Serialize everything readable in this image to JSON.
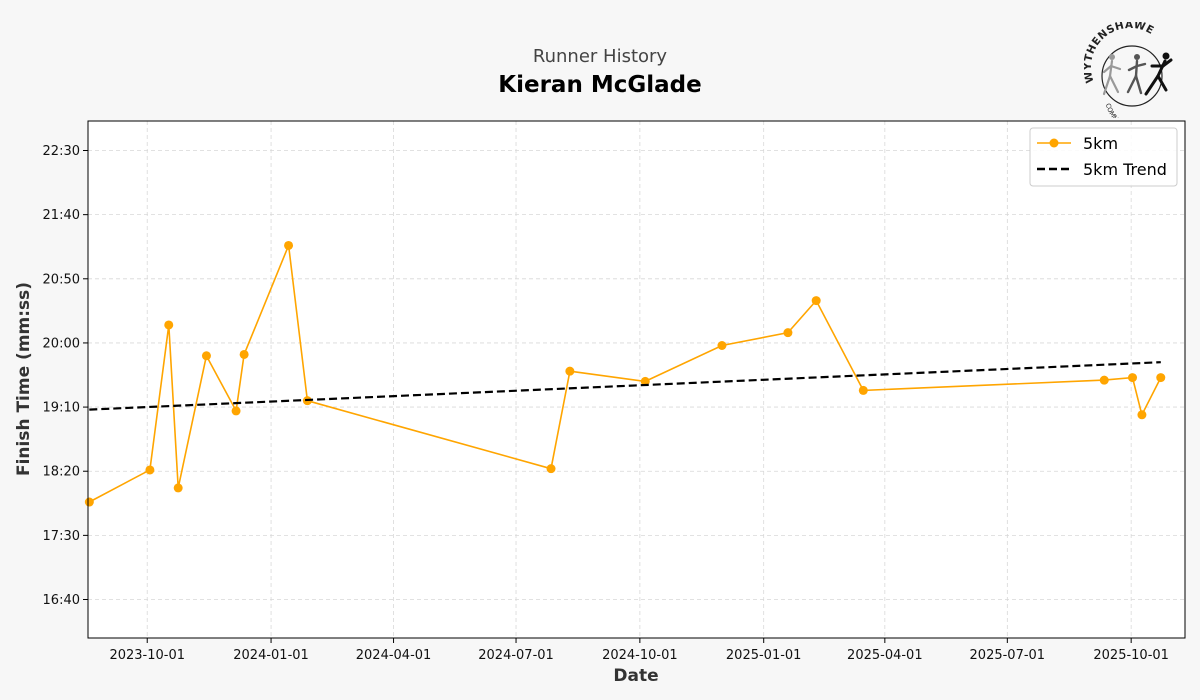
{
  "header": {
    "subtitle": "Runner History",
    "title": "Kieran McGlade"
  },
  "logo": {
    "text_top": "WYTHENSHAWE",
    "text_bottom": "COMMUNITY RUN"
  },
  "chart_data": {
    "type": "line",
    "xlabel": "Date",
    "ylabel": "Finish Time (mm:ss)",
    "x_ticks": [
      "2023-10-01",
      "2024-01-01",
      "2024-04-01",
      "2024-07-01",
      "2024-10-01",
      "2025-01-01",
      "2025-04-01",
      "2025-07-01",
      "2025-10-01"
    ],
    "y_ticks": [
      "16:40",
      "17:30",
      "18:20",
      "19:10",
      "20:00",
      "20:50",
      "21:40",
      "22:30"
    ],
    "xlim": [
      "2023-08-18",
      "2025-11-10"
    ],
    "ylim": [
      "16:10",
      "22:53"
    ],
    "grid": true,
    "legend_position": "top-right",
    "series": [
      {
        "name": "5km",
        "color": "#ffa500",
        "marker": "circle",
        "line_style": "solid",
        "points": [
          {
            "x": "2023-08-19",
            "y": "17:56"
          },
          {
            "x": "2023-10-03",
            "y": "18:21"
          },
          {
            "x": "2023-10-17",
            "y": "20:14"
          },
          {
            "x": "2023-10-24",
            "y": "18:07"
          },
          {
            "x": "2023-11-14",
            "y": "19:50"
          },
          {
            "x": "2023-12-06",
            "y": "19:07"
          },
          {
            "x": "2023-12-12",
            "y": "19:51"
          },
          {
            "x": "2024-01-14",
            "y": "21:16"
          },
          {
            "x": "2024-01-28",
            "y": "19:15"
          },
          {
            "x": "2024-07-27",
            "y": "18:22"
          },
          {
            "x": "2024-08-10",
            "y": "19:38"
          },
          {
            "x": "2024-10-05",
            "y": "19:30"
          },
          {
            "x": "2024-12-01",
            "y": "19:58"
          },
          {
            "x": "2025-01-19",
            "y": "20:08"
          },
          {
            "x": "2025-02-09",
            "y": "20:33"
          },
          {
            "x": "2025-03-16",
            "y": "19:23"
          },
          {
            "x": "2025-09-11",
            "y": "19:31"
          },
          {
            "x": "2025-10-02",
            "y": "19:33"
          },
          {
            "x": "2025-10-09",
            "y": "19:04"
          },
          {
            "x": "2025-10-23",
            "y": "19:33"
          }
        ]
      },
      {
        "name": "5km Trend",
        "color": "#000000",
        "line_style": "dashed",
        "points": [
          {
            "x": "2023-08-19",
            "y": "19:08"
          },
          {
            "x": "2025-10-23",
            "y": "19:45"
          }
        ]
      }
    ]
  }
}
